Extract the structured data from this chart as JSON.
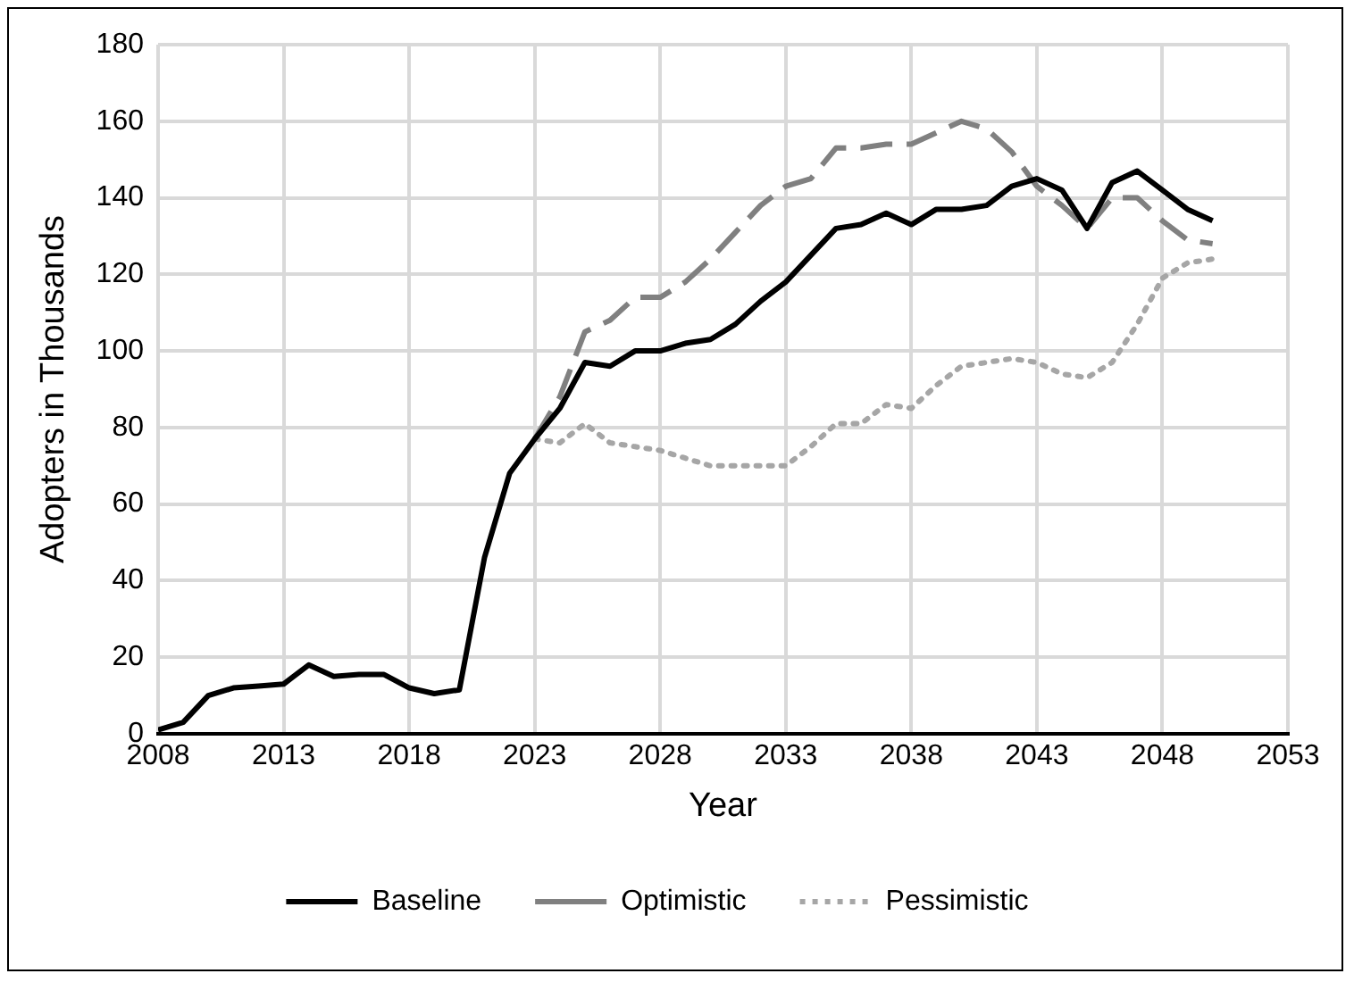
{
  "chart_data": {
    "type": "line",
    "xlabel": "Year",
    "ylabel": "Adopters in Thousands",
    "x": [
      2008,
      2009,
      2010,
      2011,
      2012,
      2013,
      2014,
      2015,
      2016,
      2017,
      2018,
      2019,
      2020,
      2021,
      2022,
      2023,
      2024,
      2025,
      2026,
      2027,
      2028,
      2029,
      2030,
      2031,
      2032,
      2033,
      2034,
      2035,
      2036,
      2037,
      2038,
      2039,
      2040,
      2041,
      2042,
      2043,
      2044,
      2045,
      2046,
      2047,
      2048,
      2049,
      2050
    ],
    "series": [
      {
        "name": "Baseline",
        "color": "#000000",
        "line_style": "solid",
        "values": [
          1,
          3,
          10,
          12,
          12.5,
          13,
          18,
          15,
          15.5,
          15.5,
          12,
          10.5,
          11.5,
          46,
          68,
          77,
          85,
          97,
          96,
          100,
          100,
          102,
          103,
          107,
          113,
          118,
          125,
          132,
          133,
          136,
          133,
          137,
          137,
          138,
          143,
          145,
          142,
          132,
          144,
          147,
          142,
          137,
          134
        ]
      },
      {
        "name": "Optimistic",
        "color": "#808080",
        "line_style": "dashed",
        "values": [
          null,
          null,
          null,
          null,
          null,
          null,
          null,
          null,
          null,
          null,
          null,
          null,
          null,
          null,
          null,
          77,
          88,
          105,
          108,
          114,
          114,
          118,
          124,
          131,
          138,
          143,
          145,
          153,
          153,
          154,
          154,
          157,
          160,
          158,
          152,
          143,
          138,
          132,
          140,
          140,
          134,
          129,
          128
        ]
      },
      {
        "name": "Pessimistic",
        "color": "#a6a6a6",
        "line_style": "dotted",
        "values": [
          null,
          null,
          null,
          null,
          null,
          null,
          null,
          null,
          null,
          null,
          null,
          null,
          null,
          null,
          null,
          77,
          76,
          81,
          76,
          75,
          74,
          72,
          70,
          70,
          70,
          70,
          75,
          81,
          81,
          86,
          85,
          91,
          96,
          97,
          98,
          97,
          94,
          93,
          97,
          107,
          119,
          123,
          124
        ]
      }
    ],
    "xlim": [
      2008,
      2053
    ],
    "xticks": [
      2008,
      2013,
      2018,
      2023,
      2028,
      2033,
      2038,
      2043,
      2048,
      2053
    ],
    "ylim": [
      0,
      180
    ],
    "yticks": [
      0,
      20,
      40,
      60,
      80,
      100,
      120,
      140,
      160,
      180
    ],
    "grid": true,
    "legend": "bottom",
    "marker": "none"
  }
}
